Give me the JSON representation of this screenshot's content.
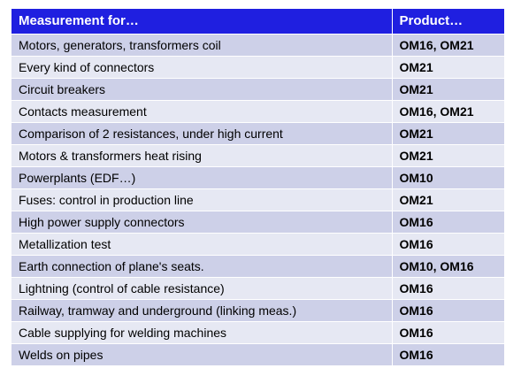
{
  "header": {
    "measurement": "Measurement for…",
    "product": "Product…"
  },
  "rows": [
    {
      "measurement": "Motors, generators, transformers coil",
      "product": "OM16, OM21"
    },
    {
      "measurement": "Every kind of connectors",
      "product": "OM21"
    },
    {
      "measurement": "Circuit breakers",
      "product": "OM21"
    },
    {
      "measurement": "Contacts measurement",
      "product": "OM16, OM21"
    },
    {
      "measurement": "Comparison of 2 resistances, under high current",
      "product": "OM21"
    },
    {
      "measurement": "Motors & transformers heat rising",
      "product": "OM21"
    },
    {
      "measurement": "Powerplants (EDF…)",
      "product": "OM10"
    },
    {
      "measurement": "Fuses: control in production line",
      "product": "OM21"
    },
    {
      "measurement": "High power supply connectors",
      "product": "OM16"
    },
    {
      "measurement": "Metallization test",
      "product": "OM16"
    },
    {
      "measurement": "Earth connection of plane's seats.",
      "product": "OM10, OM16"
    },
    {
      "measurement": "Lightning (control of cable resistance)",
      "product": "OM16"
    },
    {
      "measurement": "Railway, tramway and underground (linking meas.)",
      "product": "OM16"
    },
    {
      "measurement": "Cable supplying for welding machines",
      "product": "OM16"
    },
    {
      "measurement": "Welds on pipes",
      "product": "OM16"
    }
  ],
  "colors": {
    "header_bg": "#1f1fe0",
    "row_odd": "#cdd0e8",
    "row_even": "#e6e8f3"
  }
}
